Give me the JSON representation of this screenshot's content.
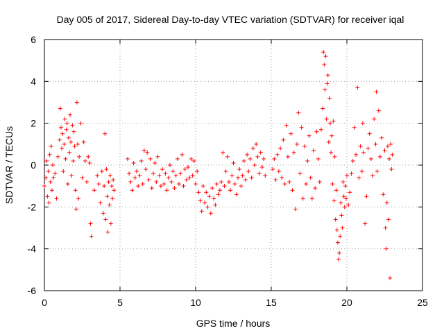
{
  "chart_data": {
    "type": "scatter",
    "title": "Day 005 of 2017, Sidereal Day-to-day VTEC variation (SDTVAR) for receiver iqal",
    "xlabel": "GPS time / hours",
    "ylabel": "SDTVAR / TECUs",
    "xlim": [
      0,
      25
    ],
    "ylim": [
      -6,
      6
    ],
    "xticks": [
      0,
      5,
      10,
      15,
      20,
      25
    ],
    "yticks": [
      -6,
      -4,
      -2,
      0,
      2,
      4,
      6
    ],
    "grid": true,
    "marker": "+",
    "color": "#ff0000",
    "series": [
      {
        "name": "SDTVAR",
        "points": [
          [
            0.0,
            -1.0
          ],
          [
            0.1,
            -0.6
          ],
          [
            0.15,
            0.2
          ],
          [
            0.2,
            -1.5
          ],
          [
            0.25,
            -0.3
          ],
          [
            0.3,
            -1.8
          ],
          [
            0.35,
            0.5
          ],
          [
            0.4,
            -0.8
          ],
          [
            0.45,
            0.9
          ],
          [
            0.5,
            -1.2
          ],
          [
            0.55,
            0.0
          ],
          [
            0.6,
            -0.6
          ],
          [
            0.7,
            -0.4
          ],
          [
            0.8,
            -1.6
          ],
          [
            0.9,
            0.4
          ],
          [
            1.0,
            1.2
          ],
          [
            1.05,
            2.7
          ],
          [
            1.1,
            1.8
          ],
          [
            1.15,
            0.8
          ],
          [
            1.2,
            1.5
          ],
          [
            1.25,
            -0.3
          ],
          [
            1.3,
            1.0
          ],
          [
            1.35,
            2.2
          ],
          [
            1.4,
            0.3
          ],
          [
            1.45,
            1.7
          ],
          [
            1.5,
            2.0
          ],
          [
            1.55,
            -0.9
          ],
          [
            1.6,
            1.3
          ],
          [
            1.65,
            0.6
          ],
          [
            1.7,
            2.4
          ],
          [
            1.75,
            1.1
          ],
          [
            1.8,
            -0.5
          ],
          [
            1.85,
            1.9
          ],
          [
            1.9,
            0.2
          ],
          [
            1.95,
            1.6
          ],
          [
            2.0,
            0.9
          ],
          [
            2.05,
            -1.2
          ],
          [
            2.1,
            -2.1
          ],
          [
            2.15,
            3.0
          ],
          [
            2.2,
            1.0
          ],
          [
            2.25,
            -1.6
          ],
          [
            2.3,
            0.4
          ],
          [
            2.4,
            2.0
          ],
          [
            2.5,
            -0.6
          ],
          [
            2.6,
            1.1
          ],
          [
            2.7,
            0.2
          ],
          [
            2.8,
            -0.8
          ],
          [
            2.9,
            0.4
          ],
          [
            3.0,
            0.1
          ],
          [
            3.05,
            -2.8
          ],
          [
            3.1,
            -3.4
          ],
          [
            3.3,
            -1.2
          ],
          [
            3.5,
            -0.5
          ],
          [
            3.6,
            -0.9
          ],
          [
            3.7,
            -1.8
          ],
          [
            3.8,
            -0.3
          ],
          [
            3.9,
            -2.3
          ],
          [
            3.95,
            -1.0
          ],
          [
            4.0,
            1.5
          ],
          [
            4.05,
            -2.6
          ],
          [
            4.1,
            -0.2
          ],
          [
            4.15,
            -1.5
          ],
          [
            4.2,
            -3.2
          ],
          [
            4.25,
            -0.8
          ],
          [
            4.3,
            -1.9
          ],
          [
            4.35,
            -0.5
          ],
          [
            4.4,
            -2.8
          ],
          [
            4.45,
            -1.0
          ],
          [
            4.5,
            -1.6
          ],
          [
            4.55,
            -0.7
          ],
          [
            4.6,
            -1.2
          ],
          [
            5.5,
            0.3
          ],
          [
            5.6,
            -0.4
          ],
          [
            5.7,
            -0.8
          ],
          [
            5.8,
            -1.2
          ],
          [
            5.9,
            0.1
          ],
          [
            6.0,
            -0.6
          ],
          [
            6.1,
            -0.3
          ],
          [
            6.2,
            -1.0
          ],
          [
            6.3,
            -0.5
          ],
          [
            6.4,
            0.2
          ],
          [
            6.5,
            -0.9
          ],
          [
            6.6,
            0.7
          ],
          [
            6.7,
            -0.2
          ],
          [
            6.8,
            0.6
          ],
          [
            6.9,
            -0.7
          ],
          [
            7.0,
            0.3
          ],
          [
            7.1,
            -1.1
          ],
          [
            7.2,
            -0.4
          ],
          [
            7.3,
            0.1
          ],
          [
            7.4,
            -0.8
          ],
          [
            7.5,
            0.4
          ],
          [
            7.6,
            -0.5
          ],
          [
            7.7,
            -1.0
          ],
          [
            7.8,
            -0.2
          ],
          [
            7.9,
            -0.9
          ],
          [
            8.0,
            -0.4
          ],
          [
            8.1,
            -1.2
          ],
          [
            8.2,
            -0.6
          ],
          [
            8.3,
            0.0
          ],
          [
            8.4,
            -0.8
          ],
          [
            8.5,
            -0.3
          ],
          [
            8.6,
            -1.1
          ],
          [
            8.7,
            -0.5
          ],
          [
            8.8,
            0.3
          ],
          [
            8.9,
            -0.9
          ],
          [
            9.0,
            -0.4
          ],
          [
            9.1,
            0.5
          ],
          [
            9.2,
            -1.0
          ],
          [
            9.3,
            -0.2
          ],
          [
            9.4,
            -0.7
          ],
          [
            9.5,
            -0.1
          ],
          [
            9.6,
            -0.6
          ],
          [
            9.7,
            0.3
          ],
          [
            9.8,
            -0.5
          ],
          [
            9.9,
            0.2
          ],
          [
            10.0,
            -0.9
          ],
          [
            10.1,
            -0.3
          ],
          [
            10.2,
            -1.3
          ],
          [
            10.3,
            -1.7
          ],
          [
            10.4,
            -2.2
          ],
          [
            10.5,
            -1.0
          ],
          [
            10.6,
            -1.8
          ],
          [
            10.7,
            -1.3
          ],
          [
            10.8,
            -2.0
          ],
          [
            10.9,
            -1.5
          ],
          [
            11.0,
            -2.3
          ],
          [
            11.1,
            -1.1
          ],
          [
            11.2,
            -1.6
          ],
          [
            11.3,
            -1.9
          ],
          [
            11.4,
            -0.9
          ],
          [
            11.5,
            -1.4
          ],
          [
            11.6,
            -1.2
          ],
          [
            11.7,
            -0.8
          ],
          [
            11.8,
            0.6
          ],
          [
            11.9,
            -1.0
          ],
          [
            12.0,
            -0.3
          ],
          [
            12.1,
            0.4
          ],
          [
            12.2,
            -0.8
          ],
          [
            12.3,
            -1.2
          ],
          [
            12.4,
            -0.5
          ],
          [
            12.5,
            0.1
          ],
          [
            12.6,
            -0.9
          ],
          [
            12.7,
            -1.4
          ],
          [
            12.8,
            -0.6
          ],
          [
            12.9,
            -0.2
          ],
          [
            13.0,
            -1.0
          ],
          [
            13.1,
            -0.5
          ],
          [
            13.2,
            0.2
          ],
          [
            13.3,
            -0.7
          ],
          [
            13.4,
            0.5
          ],
          [
            13.5,
            -0.3
          ],
          [
            13.6,
            0.3
          ],
          [
            13.7,
            -0.6
          ],
          [
            13.8,
            0.8
          ],
          [
            13.9,
            0.0
          ],
          [
            14.0,
            1.0
          ],
          [
            14.1,
            0.4
          ],
          [
            14.2,
            -0.4
          ],
          [
            14.3,
            0.6
          ],
          [
            14.4,
            -0.1
          ],
          [
            14.5,
            0.3
          ],
          [
            14.6,
            -0.5
          ],
          [
            15.1,
            -0.2
          ],
          [
            15.2,
            0.3
          ],
          [
            15.3,
            -0.7
          ],
          [
            15.4,
            0.5
          ],
          [
            15.5,
            -0.3
          ],
          [
            15.6,
            0.8
          ],
          [
            15.7,
            -0.6
          ],
          [
            15.8,
            1.2
          ],
          [
            15.9,
            -0.9
          ],
          [
            16.0,
            1.9
          ],
          [
            16.1,
            0.4
          ],
          [
            16.2,
            -0.8
          ],
          [
            16.3,
            1.5
          ],
          [
            16.4,
            -1.2
          ],
          [
            16.5,
            0.6
          ],
          [
            16.6,
            -2.1
          ],
          [
            16.7,
            1.0
          ],
          [
            16.8,
            2.5
          ],
          [
            16.9,
            -0.4
          ],
          [
            17.0,
            1.8
          ],
          [
            17.1,
            -1.6
          ],
          [
            17.2,
            0.9
          ],
          [
            17.3,
            -0.9
          ],
          [
            17.4,
            0.2
          ],
          [
            17.5,
            1.4
          ],
          [
            17.6,
            -0.6
          ],
          [
            17.7,
            -1.6
          ],
          [
            17.8,
            0.7
          ],
          [
            17.9,
            -1.1
          ],
          [
            18.0,
            1.6
          ],
          [
            18.1,
            0.3
          ],
          [
            18.2,
            -0.8
          ],
          [
            18.3,
            1.7
          ],
          [
            18.4,
            2.7
          ],
          [
            18.45,
            5.4
          ],
          [
            18.5,
            4.8
          ],
          [
            18.55,
            3.6
          ],
          [
            18.6,
            5.2
          ],
          [
            18.65,
            2.2
          ],
          [
            18.7,
            3.9
          ],
          [
            18.75,
            4.3
          ],
          [
            18.8,
            1.1
          ],
          [
            18.85,
            3.2
          ],
          [
            18.9,
            2.0
          ],
          [
            18.95,
            0.6
          ],
          [
            19.0,
            1.4
          ],
          [
            19.05,
            -0.9
          ],
          [
            19.1,
            2.1
          ],
          [
            19.15,
            -1.7
          ],
          [
            19.2,
            0.4
          ],
          [
            19.25,
            -2.6
          ],
          [
            19.3,
            -1.2
          ],
          [
            19.35,
            -3.1
          ],
          [
            19.4,
            -3.7
          ],
          [
            19.45,
            -4.5
          ],
          [
            19.5,
            -4.2
          ],
          [
            19.55,
            -3.4
          ],
          [
            19.6,
            -1.8
          ],
          [
            19.65,
            -2.4
          ],
          [
            19.7,
            -3.0
          ],
          [
            19.75,
            -0.8
          ],
          [
            19.8,
            -1.5
          ],
          [
            19.85,
            -2.0
          ],
          [
            19.9,
            -1.0
          ],
          [
            19.95,
            -1.6
          ],
          [
            20.0,
            -0.5
          ],
          [
            20.1,
            -1.9
          ],
          [
            20.2,
            -1.3
          ],
          [
            20.3,
            -0.4
          ],
          [
            20.4,
            0.2
          ],
          [
            20.5,
            1.8
          ],
          [
            20.6,
            0.5
          ],
          [
            20.7,
            3.7
          ],
          [
            20.8,
            -0.6
          ],
          [
            20.9,
            0.9
          ],
          [
            21.0,
            -0.3
          ],
          [
            21.05,
            2.0
          ],
          [
            21.1,
            0.6
          ],
          [
            21.2,
            -2.8
          ],
          [
            21.3,
            -1.5
          ],
          [
            21.4,
            0.8
          ],
          [
            21.5,
            1.5
          ],
          [
            21.6,
            0.3
          ],
          [
            21.7,
            -0.5
          ],
          [
            21.8,
            2.2
          ],
          [
            21.9,
            1.0
          ],
          [
            21.95,
            3.5
          ],
          [
            22.0,
            -0.3
          ],
          [
            22.1,
            2.6
          ],
          [
            22.2,
            0.4
          ],
          [
            22.3,
            1.3
          ],
          [
            22.4,
            -1.4
          ],
          [
            22.5,
            0.7
          ],
          [
            22.55,
            -3.0
          ],
          [
            22.6,
            -4.0
          ],
          [
            22.65,
            -1.8
          ],
          [
            22.7,
            0.9
          ],
          [
            22.75,
            -2.6
          ],
          [
            22.8,
            0.3
          ],
          [
            22.85,
            -5.4
          ],
          [
            22.9,
            1.0
          ],
          [
            22.95,
            -0.2
          ],
          [
            23.0,
            0.5
          ]
        ]
      }
    ]
  }
}
